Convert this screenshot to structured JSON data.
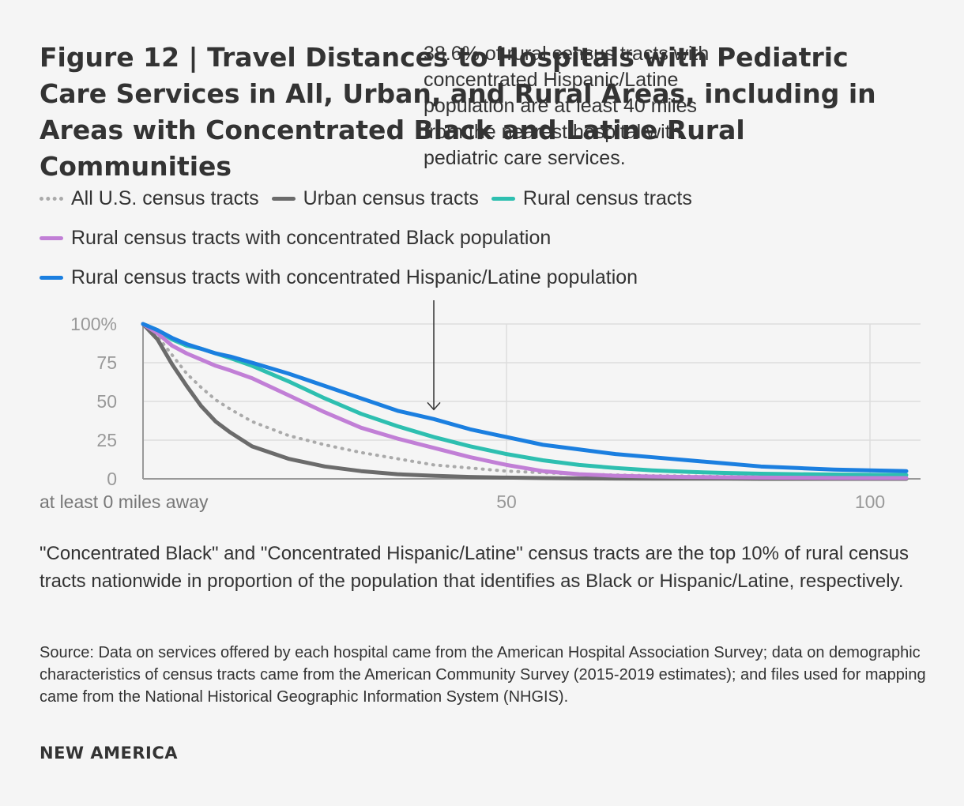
{
  "figure": {
    "title": "Figure 12 | Travel Distances to Hospitals with Pediatric Care Services in All, Urban, and Rural Areas, including in Areas with Concentrated Black and Latine Rural Communities",
    "annotation": "38.6% of rural census tracts with concentrated Hispanic/Latine population are at least 40 miles from the nearest hospital with pediatric care services.",
    "note": "\"Concentrated Black\" and \"Concentrated Hispanic/Latine\" census tracts are the top 10% of rural census tracts nationwide in proportion of the population that identifies as Black or Hispanic/Latine, respectively.",
    "source": "Source: Data on services offered by each hospital came from the American Hospital Association Survey; data on demographic characteristics of census tracts came from the American Community Survey (2015-2019 estimates); and files used for mapping came from the National Historical Geographic Information System (NHGIS).",
    "brand": "NEW AMERICA"
  },
  "chart_data": {
    "type": "line",
    "title": "Figure 12 | Travel Distances to Hospitals with Pediatric Care Services in All, Urban, and Rural Areas, including in Areas with Concentrated Black and Latine Rural Communities",
    "xlabel": "at least 0 miles away",
    "ylabel": "",
    "xlim": [
      0,
      105
    ],
    "ylim": [
      0,
      100
    ],
    "x_ticks": [
      0,
      50,
      100
    ],
    "x_tick_labels": [
      "at least 0 miles away",
      "50",
      "100"
    ],
    "y_ticks": [
      0,
      25,
      50,
      75,
      100
    ],
    "y_tick_labels": [
      "0",
      "25",
      "50",
      "75",
      "100%"
    ],
    "grid": true,
    "legend_position": "top",
    "annotation": {
      "x": 40,
      "y": 38.6,
      "text": "38.6% of rural census tracts with concentrated Hispanic/Latine population are at least 40 miles from the nearest hospital with pediatric care services."
    },
    "x": [
      0,
      2,
      4,
      6,
      8,
      10,
      12,
      15,
      20,
      25,
      30,
      35,
      40,
      45,
      50,
      55,
      60,
      65,
      70,
      75,
      80,
      85,
      90,
      95,
      100,
      105
    ],
    "series": [
      {
        "name": "All U.S. census tracts",
        "style": "dotted",
        "color": "#aaaaaa",
        "values": [
          100,
          92,
          80,
          68,
          59,
          51,
          45,
          37,
          28,
          22,
          17,
          13,
          9,
          7,
          5,
          4,
          3,
          2.5,
          2,
          1.8,
          1.5,
          1.3,
          1.2,
          1.1,
          1,
          1
        ]
      },
      {
        "name": "Urban census tracts",
        "style": "solid",
        "color": "#6b6b6b",
        "values": [
          100,
          90,
          74,
          60,
          47,
          37,
          30,
          21,
          13,
          8,
          5,
          3,
          2,
          1.2,
          0.8,
          0.5,
          0.3,
          0.2,
          0.1,
          0.1,
          0.1,
          0,
          0,
          0,
          0,
          0
        ]
      },
      {
        "name": "Rural census tracts",
        "style": "solid",
        "color": "#2ebfb0",
        "values": [
          100,
          96,
          90,
          86,
          84,
          81,
          78,
          73,
          63,
          52,
          42,
          34,
          27,
          21,
          16,
          12,
          9,
          7,
          5.5,
          4.5,
          3.8,
          3.3,
          3,
          2.8,
          2.6,
          2.5
        ]
      },
      {
        "name": "Rural census tracts with concentrated Black population",
        "style": "solid",
        "color": "#c17fd6",
        "values": [
          100,
          94,
          86,
          81,
          77,
          73,
          70,
          65,
          54,
          43,
          33,
          26,
          20,
          14,
          9,
          5,
          3,
          2,
          1.5,
          1.2,
          1,
          0.8,
          0.7,
          0.6,
          0.5,
          0.5
        ]
      },
      {
        "name": "Rural census tracts with concentrated Hispanic/Latine population",
        "style": "solid",
        "color": "#1b7fe0",
        "values": [
          100,
          96,
          91,
          87,
          84,
          81,
          79,
          75,
          68,
          60,
          52,
          44,
          38.6,
          32,
          27,
          22,
          19,
          16,
          14,
          12,
          10,
          8,
          7,
          6,
          5.5,
          5
        ]
      }
    ]
  }
}
